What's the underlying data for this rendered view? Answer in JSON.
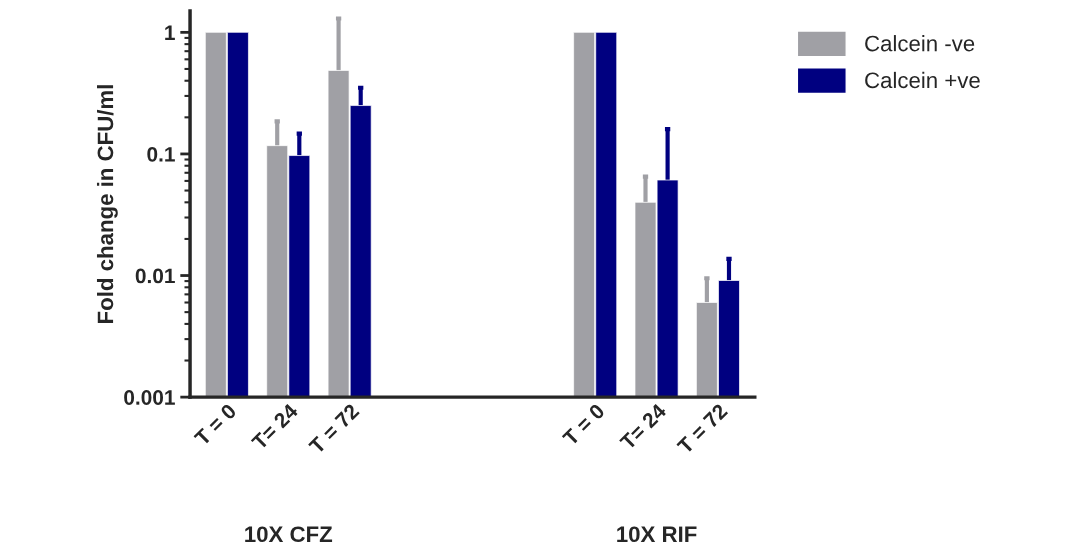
{
  "chart_data": {
    "type": "bar",
    "ylabel": "Fold change in CFU/ml",
    "categories": [
      "T = 0",
      "T= 24",
      "T = 72",
      null,
      null,
      null,
      "T = 0",
      "T= 24",
      "T = 72"
    ],
    "series": [
      {
        "name": "Calcein -ve",
        "color": "#a0a0a5",
        "values": [
          1,
          0.117,
          0.486,
          null,
          null,
          null,
          1,
          0.04,
          0.006
        ],
        "errors": [
          null,
          [
            0.117,
            0.185
          ],
          [
            0.486,
            1.3
          ],
          null,
          null,
          null,
          null,
          [
            0.04,
            0.065
          ],
          [
            0.006,
            0.0095
          ]
        ]
      },
      {
        "name": "Calcein +ve",
        "color": "#000080",
        "values": [
          1,
          0.097,
          0.25,
          null,
          null,
          null,
          1,
          0.061,
          0.0091
        ],
        "errors": [
          null,
          [
            0.097,
            0.147
          ],
          [
            0.25,
            0.35
          ],
          null,
          null,
          null,
          null,
          [
            0.061,
            0.16
          ],
          [
            0.0091,
            0.0137
          ]
        ]
      }
    ],
    "annotations": [
      "10X CFZ",
      "10X RIF"
    ],
    "log": "y",
    "ylim": [
      0.001,
      1.5
    ],
    "yticks": [
      0.001,
      0.01,
      0.1,
      1
    ],
    "legend": "top right",
    "grid": false
  }
}
